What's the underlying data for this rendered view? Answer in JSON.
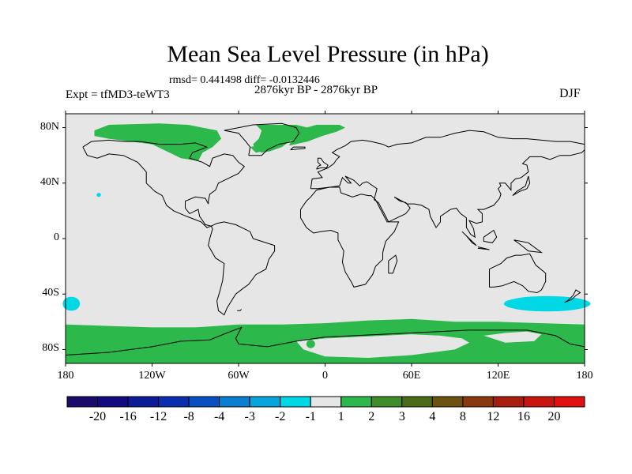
{
  "chart_data": {
    "type": "heatmap",
    "title": "Mean Sea Level Pressure (in hPa)",
    "stats": "rmsd= 0.441498 diff= -0.0132446",
    "period": "2876kyr BP - 2876kyr BP",
    "experiment": "Expt = tfMD3-teWT3",
    "season": "DJF",
    "x_ticks": [
      "180",
      "120W",
      "60W",
      "0",
      "60E",
      "120E",
      "180"
    ],
    "y_ticks": [
      "80N",
      "40N",
      "0",
      "40S",
      "80S"
    ],
    "x_range": [
      -180,
      180
    ],
    "y_range": [
      -90,
      90
    ],
    "colorbar_labels": [
      "-20",
      "-16",
      "-12",
      "-8",
      "-4",
      "-3",
      "-2",
      "-1",
      "1",
      "2",
      "3",
      "4",
      "8",
      "12",
      "16",
      "20"
    ],
    "colorbar_colors": [
      "#1a0a6b",
      "#120a7e",
      "#0c1c96",
      "#0a2fae",
      "#0a4fc2",
      "#0a7ed0",
      "#07a4dd",
      "#00d8e6",
      "#e6e6e6",
      "#2cb84a",
      "#3e8c28",
      "#4a6a18",
      "#6b5212",
      "#8a3810",
      "#a81e0c",
      "#c8160e",
      "#e01010"
    ],
    "regions": [
      {
        "label": "Arctic Canada positive anomaly",
        "bin": "1 to 2",
        "lon": [
          -160,
          -80
        ],
        "lat": [
          62,
          82
        ]
      },
      {
        "label": "Greenland-Barents positive anomaly",
        "bin": "1 to 2",
        "lon": [
          -50,
          10
        ],
        "lat": [
          60,
          82
        ]
      },
      {
        "label": "Southern Ocean positive anomaly",
        "bin": "1 to 2",
        "lon": [
          -180,
          180
        ],
        "lat": [
          -90,
          -62
        ]
      },
      {
        "label": "South Pacific negative anomaly",
        "bin": "-2 to -1",
        "lon": [
          -180,
          -170
        ],
        "lat": [
          -52,
          -42
        ]
      },
      {
        "label": "South Indian-Australian negative anomaly",
        "bin": "-2 to -1",
        "lon": [
          125,
          180
        ],
        "lat": [
          -52,
          -42
        ]
      },
      {
        "label": "North Pacific small negative anomaly",
        "bin": "-2 to -1",
        "lon": [
          -158,
          -155
        ],
        "lat": [
          30,
          33
        ]
      }
    ]
  }
}
